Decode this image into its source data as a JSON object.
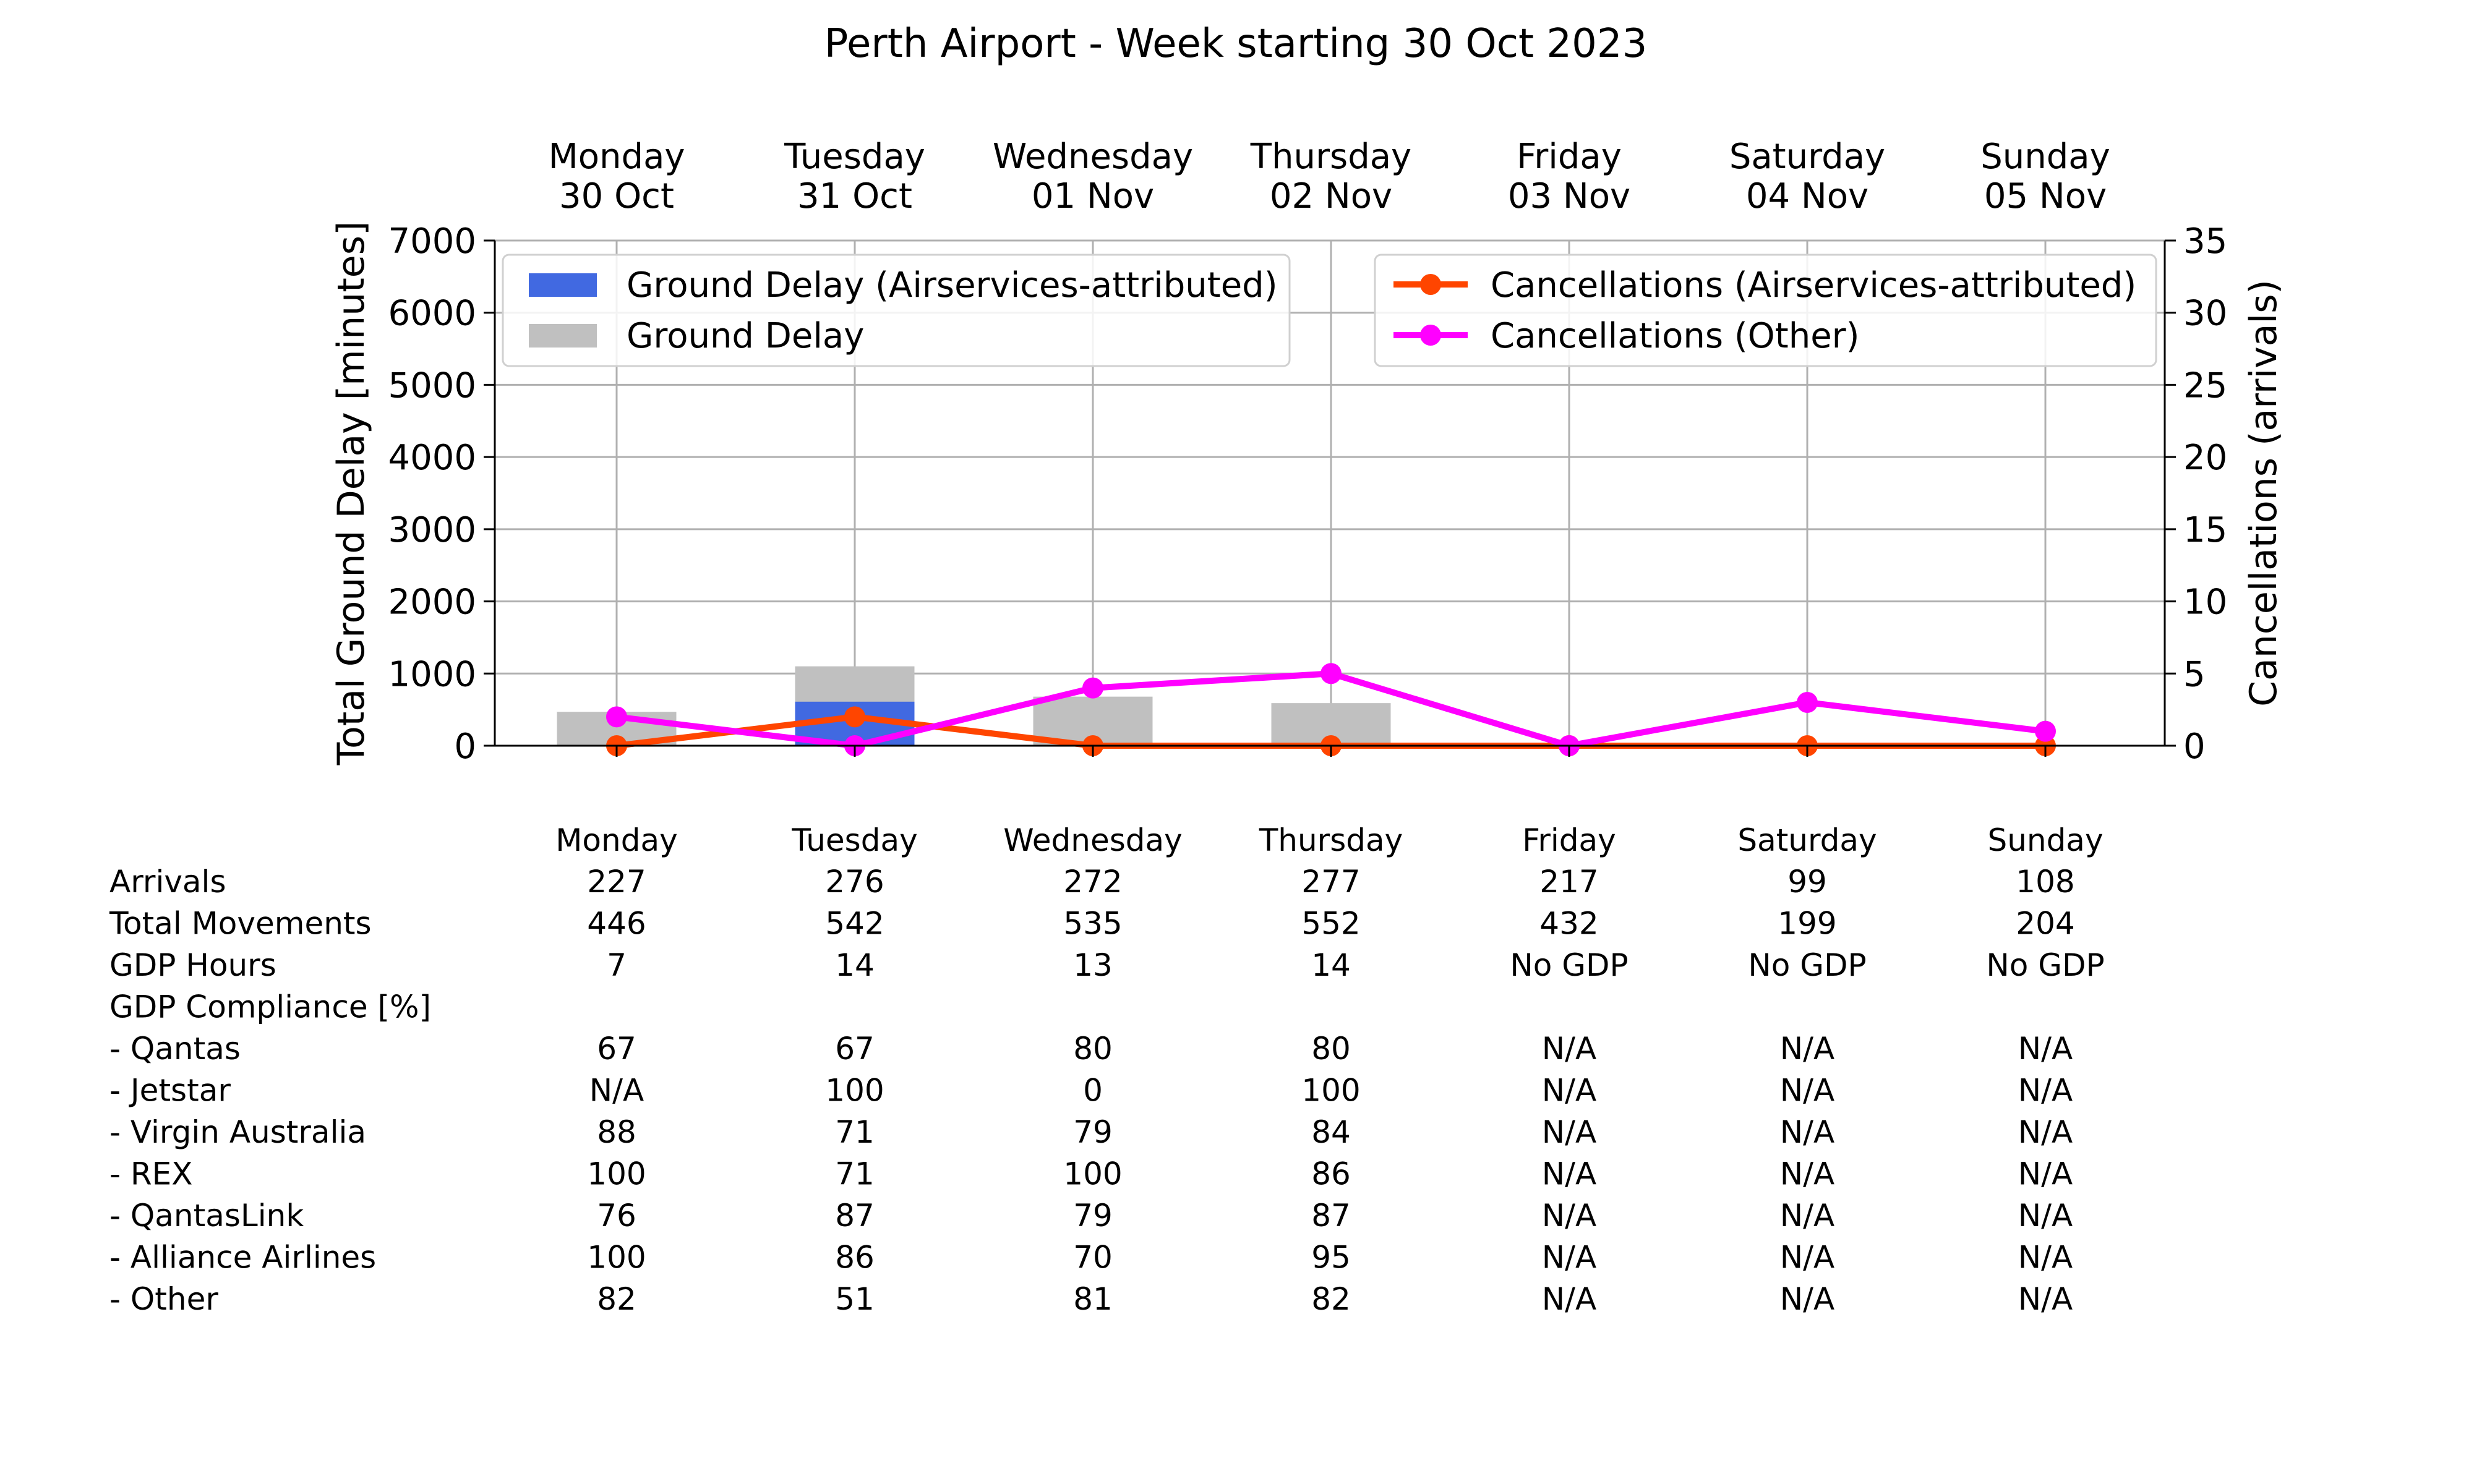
{
  "chart_data": {
    "type": "bar",
    "title": "Perth Airport - Week starting 30 Oct 2023",
    "day_headers": [
      [
        "Monday",
        "30 Oct"
      ],
      [
        "Tuesday",
        "31 Oct"
      ],
      [
        "Wednesday",
        "01 Nov"
      ],
      [
        "Thursday",
        "02 Nov"
      ],
      [
        "Friday",
        "03 Nov"
      ],
      [
        "Saturday",
        "04 Nov"
      ],
      [
        "Sunday",
        "05 Nov"
      ]
    ],
    "ylabel": "Total Ground Delay [minutes]",
    "ylim": [
      0,
      7000
    ],
    "yticks": [
      0,
      1000,
      2000,
      3000,
      4000,
      5000,
      6000,
      7000
    ],
    "y2label": "Cancellations (arrivals)",
    "y2lim": [
      0,
      35
    ],
    "y2ticks": [
      0,
      5,
      10,
      15,
      20,
      25,
      30,
      35
    ],
    "grid": true,
    "bar_series": [
      {
        "name": "Ground Delay",
        "color": "#c0c0c0",
        "values": [
          470,
          1100,
          680,
          590,
          0,
          0,
          0
        ]
      },
      {
        "name": "Ground Delay (Airservices-attributed)",
        "color": "#4169e1",
        "values": [
          0,
          610,
          0,
          0,
          0,
          0,
          0
        ]
      }
    ],
    "line_series": [
      {
        "name": "Cancellations (Airservices-attributed)",
        "color": "#ff4500",
        "values": [
          0,
          2,
          0,
          0,
          0,
          0,
          0
        ]
      },
      {
        "name": "Cancellations (Other)",
        "color": "#ff00ff",
        "values": [
          2,
          0,
          4,
          5,
          0,
          3,
          1
        ]
      }
    ],
    "legend_left": [
      "Ground Delay (Airservices-attributed)",
      "Ground Delay"
    ],
    "legend_right": [
      "Cancellations (Airservices-attributed)",
      "Cancellations (Other)"
    ],
    "table": {
      "columns": [
        "Monday",
        "Tuesday",
        "Wednesday",
        "Thursday",
        "Friday",
        "Saturday",
        "Sunday"
      ],
      "rows": [
        {
          "label": "Arrivals",
          "values": [
            "227",
            "276",
            "272",
            "277",
            "217",
            "99",
            "108"
          ]
        },
        {
          "label": "Total Movements",
          "values": [
            "446",
            "542",
            "535",
            "552",
            "432",
            "199",
            "204"
          ]
        },
        {
          "label": "GDP Hours",
          "values": [
            "7",
            "14",
            "13",
            "14",
            "No GDP",
            "No GDP",
            "No GDP"
          ]
        },
        {
          "label": "GDP Compliance [%]",
          "values": [
            "",
            "",
            "",
            "",
            "",
            "",
            ""
          ]
        },
        {
          "label": "  - Qantas",
          "values": [
            "67",
            "67",
            "80",
            "80",
            "N/A",
            "N/A",
            "N/A"
          ]
        },
        {
          "label": "  - Jetstar",
          "values": [
            "N/A",
            "100",
            "0",
            "100",
            "N/A",
            "N/A",
            "N/A"
          ]
        },
        {
          "label": "  - Virgin Australia",
          "values": [
            "88",
            "71",
            "79",
            "84",
            "N/A",
            "N/A",
            "N/A"
          ]
        },
        {
          "label": "  - REX",
          "values": [
            "100",
            "71",
            "100",
            "86",
            "N/A",
            "N/A",
            "N/A"
          ]
        },
        {
          "label": "  - QantasLink",
          "values": [
            "76",
            "87",
            "79",
            "87",
            "N/A",
            "N/A",
            "N/A"
          ]
        },
        {
          "label": "  - Alliance Airlines",
          "values": [
            "100",
            "86",
            "70",
            "95",
            "N/A",
            "N/A",
            "N/A"
          ]
        },
        {
          "label": "  - Other",
          "values": [
            "82",
            "51",
            "81",
            "82",
            "N/A",
            "N/A",
            "N/A"
          ]
        }
      ]
    }
  }
}
